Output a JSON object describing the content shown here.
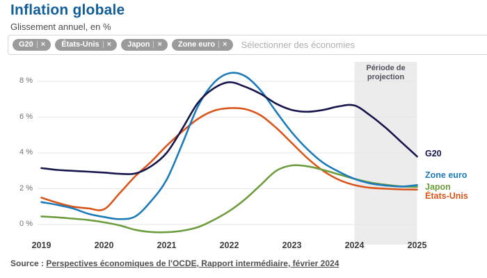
{
  "header": {
    "title": "Inflation globale",
    "subtitle": "Glissement annuel, en %"
  },
  "filters": {
    "chips": [
      {
        "label": "G20"
      },
      {
        "label": "États-Unis"
      },
      {
        "label": "Japon"
      },
      {
        "label": "Zone euro"
      }
    ],
    "remove_icon": "×",
    "placeholder": "Sélectionner des économies"
  },
  "chart_data": {
    "type": "line",
    "title": "Inflation globale",
    "ylabel": "Glissement annuel, en %",
    "xlim": [
      2019,
      2025
    ],
    "ylim": [
      -0.6,
      9
    ],
    "grid": true,
    "legend_position": "right-of-line-ends",
    "x_start": 2019,
    "x_step": 0.25,
    "yticks": [
      {
        "value": 0,
        "label": "0 %"
      },
      {
        "value": 2,
        "label": "2 %"
      },
      {
        "value": 4,
        "label": "4 %"
      },
      {
        "value": 6,
        "label": "6 %"
      },
      {
        "value": 8,
        "label": "8 %"
      }
    ],
    "xticks": [
      {
        "value": 2019,
        "label": "2019"
      },
      {
        "value": 2020,
        "label": "2020"
      },
      {
        "value": 2021,
        "label": "2021"
      },
      {
        "value": 2022,
        "label": "2022"
      },
      {
        "value": 2023,
        "label": "2023"
      },
      {
        "value": 2024,
        "label": "2024"
      },
      {
        "value": 2025,
        "label": "2025"
      }
    ],
    "projection": {
      "label_line1": "Période de",
      "label_line2": "projection",
      "x_from": 2024,
      "x_to": 2025,
      "fill": "#ececec"
    },
    "series": [
      {
        "name": "G20",
        "color": "#15154b",
        "values": [
          3.15,
          3.05,
          3.0,
          2.95,
          2.9,
          2.83,
          2.85,
          3.25,
          4.0,
          5.35,
          6.8,
          7.6,
          7.95,
          7.7,
          7.3,
          6.75,
          6.4,
          6.3,
          6.4,
          6.6,
          6.65,
          6.1,
          5.4,
          4.6,
          3.8
        ]
      },
      {
        "name": "Zone euro",
        "color": "#1d7ab9",
        "values": [
          1.25,
          1.1,
          0.9,
          0.6,
          0.42,
          0.3,
          0.45,
          1.3,
          2.5,
          4.5,
          6.6,
          7.9,
          8.45,
          8.3,
          7.5,
          6.3,
          5.15,
          4.2,
          3.45,
          2.95,
          2.55,
          2.3,
          2.18,
          2.12,
          2.2
        ]
      },
      {
        "name": "Japon",
        "color": "#6d9c3e",
        "values": [
          0.45,
          0.4,
          0.33,
          0.25,
          0.12,
          -0.05,
          -0.3,
          -0.42,
          -0.43,
          -0.35,
          -0.15,
          0.25,
          0.75,
          1.4,
          2.2,
          3.0,
          3.3,
          3.25,
          3.05,
          2.8,
          2.55,
          2.35,
          2.22,
          2.13,
          2.1
        ]
      },
      {
        "name": "États-Unis",
        "color": "#d9561b",
        "values": [
          1.5,
          1.22,
          1.0,
          0.9,
          0.85,
          1.75,
          2.7,
          3.5,
          4.4,
          5.2,
          5.9,
          6.35,
          6.5,
          6.45,
          6.1,
          5.4,
          4.55,
          3.7,
          3.0,
          2.5,
          2.2,
          2.05,
          2.0,
          1.96,
          1.95
        ]
      }
    ]
  },
  "source": {
    "prefix": "Source : ",
    "link": "Perspectives économiques de l'OCDE, Rapport intermédiaire, février 2024"
  }
}
